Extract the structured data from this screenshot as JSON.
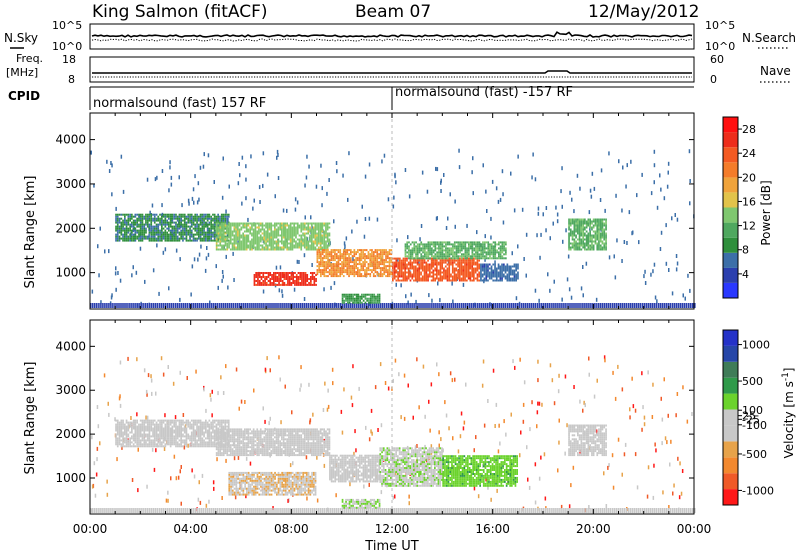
{
  "header": {
    "station": "King Salmon (fitACF)",
    "beam": "Beam 07",
    "date": "12/May/2012"
  },
  "side_labels": {
    "nsky": "N.Sky",
    "freq": "Freq.",
    "freq_unit": "[MHz]",
    "cpid": "CPID",
    "nsearch": "N.Search",
    "nave": "Nave"
  },
  "noise_panel": {
    "left_ticks": [
      "10^5",
      "10^0"
    ],
    "right_ticks": [
      "10^5",
      "10^0"
    ]
  },
  "freq_panel": {
    "left_ticks": [
      "18",
      "8"
    ],
    "right_ticks": [
      "60",
      "0"
    ]
  },
  "cpid_panel": {
    "labels": [
      "normalsound (fast) 157 RF",
      "normalsound (fast) -157 RF"
    ],
    "switch_time_h": 12
  },
  "colors": {
    "power_scale": [
      "#2a38ff",
      "#2b3fae",
      "#3c6fa8",
      "#2f8f3c",
      "#4fa85f",
      "#7fc76f",
      "#e2c34a",
      "#f0a33b",
      "#f47c2a",
      "#f45a22",
      "#ee2d1b",
      "#ff1010"
    ],
    "velocity_scale": [
      "#ff1818",
      "#f05a28",
      "#f3892f",
      "#e7a34a",
      "#c8c8c8",
      "#c8c8c8",
      "#6bd32c",
      "#2f9a4a",
      "#3f7c58",
      "#2646a8",
      "#2432c8"
    ]
  },
  "chart_data": [
    {
      "type": "heatmap",
      "title": "",
      "xlabel": "",
      "ylabel": "Slant Range [km]",
      "xlim_hours": [
        0,
        24
      ],
      "ylim": [
        180,
        4600
      ],
      "y_ticks": [
        1000,
        2000,
        3000,
        4000
      ],
      "x_ticks": [
        "00:00",
        "04:00",
        "08:00",
        "12:00",
        "16:00",
        "20:00",
        "00:00"
      ],
      "colorbar": {
        "label": "Power [dB]",
        "ticks": [
          4,
          8,
          12,
          16,
          20,
          24,
          28
        ],
        "range": [
          0,
          30
        ]
      },
      "regions": [
        {
          "t0": 1.0,
          "t1": 5.5,
          "r0": 1700,
          "r1": 2300,
          "value": 8
        },
        {
          "t0": 5.0,
          "t1": 9.5,
          "r0": 1500,
          "r1": 2100,
          "value": 14
        },
        {
          "t0": 6.5,
          "t1": 9.0,
          "r0": 700,
          "r1": 1000,
          "value": 26
        },
        {
          "t0": 9.0,
          "t1": 12.0,
          "r0": 900,
          "r1": 1500,
          "value": 20
        },
        {
          "t0": 12.0,
          "t1": 15.5,
          "r0": 800,
          "r1": 1300,
          "value": 24
        },
        {
          "t0": 12.5,
          "t1": 16.5,
          "r0": 1300,
          "r1": 1700,
          "value": 12
        },
        {
          "t0": 15.5,
          "t1": 17.0,
          "r0": 800,
          "r1": 1200,
          "value": 6
        },
        {
          "t0": 10.0,
          "t1": 11.5,
          "r0": 300,
          "r1": 500,
          "value": 10
        },
        {
          "t0": 19.0,
          "t1": 20.5,
          "r0": 1500,
          "r1": 2200,
          "value": 12
        }
      ]
    },
    {
      "type": "heatmap",
      "title": "",
      "xlabel": "Time UT",
      "ylabel": "Slant Range [km]",
      "xlim_hours": [
        0,
        24
      ],
      "ylim": [
        180,
        4600
      ],
      "y_ticks": [
        1000,
        2000,
        3000,
        4000
      ],
      "x_ticks": [
        "00:00",
        "04:00",
        "08:00",
        "12:00",
        "16:00",
        "20:00",
        "00:00"
      ],
      "colorbar": {
        "label": "Velocity [m s^-1]",
        "ticks": [
          -1000,
          -500,
          -100,
          -25,
          25,
          100,
          500,
          1000
        ],
        "range": [
          -1200,
          1200
        ]
      },
      "regions": [
        {
          "t0": 1.0,
          "t1": 5.5,
          "r0": 1700,
          "r1": 2300,
          "value": -10
        },
        {
          "t0": 5.0,
          "t1": 9.5,
          "r0": 1500,
          "r1": 2100,
          "value": -15
        },
        {
          "t0": 5.5,
          "t1": 9.0,
          "r0": 600,
          "r1": 1100,
          "value": -300
        },
        {
          "t0": 9.5,
          "t1": 11.5,
          "r0": 900,
          "r1": 1500,
          "value": -150
        },
        {
          "t0": 11.5,
          "t1": 14.0,
          "r0": 800,
          "r1": 1700,
          "value": 60
        },
        {
          "t0": 14.0,
          "t1": 17.0,
          "r0": 800,
          "r1": 1500,
          "value": 250
        },
        {
          "t0": 10.0,
          "t1": 11.5,
          "r0": 300,
          "r1": 500,
          "value": 80
        },
        {
          "t0": 19.0,
          "t1": 20.5,
          "r0": 1500,
          "r1": 2200,
          "value": -10
        }
      ]
    }
  ]
}
